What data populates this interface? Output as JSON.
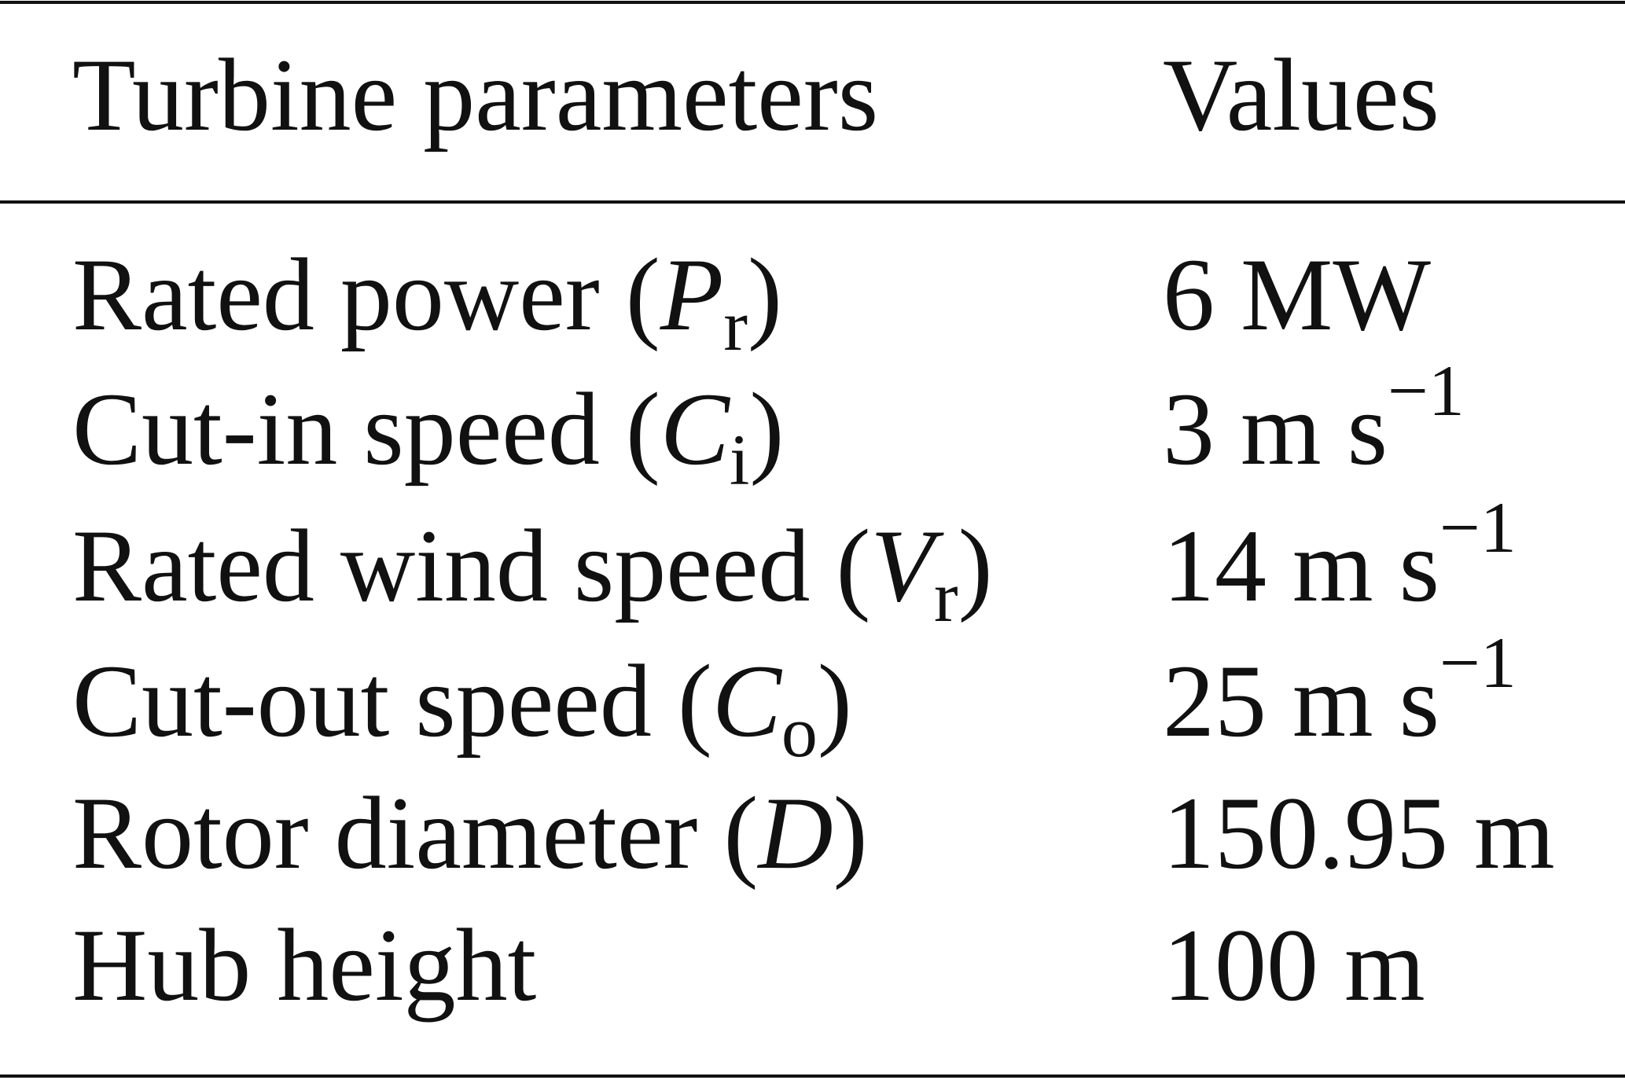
{
  "table": {
    "header": [
      "Turbine parameters",
      "Values"
    ],
    "rows": [
      [
        [
          {
            "text": "Rated power ("
          },
          {
            "text": "P",
            "style": "italic"
          },
          {
            "text": "r",
            "style": "sub"
          },
          {
            "text": ")"
          }
        ],
        [
          {
            "text": "6 MW"
          }
        ]
      ],
      [
        [
          {
            "text": "Cut-in speed ("
          },
          {
            "text": "C",
            "style": "italic"
          },
          {
            "text": "i",
            "style": "sub"
          },
          {
            "text": ")"
          }
        ],
        [
          {
            "text": "3 m s"
          },
          {
            "text": "−1",
            "style": "sup"
          }
        ]
      ],
      [
        [
          {
            "text": "Rated wind speed ("
          },
          {
            "text": "V",
            "style": "italic"
          },
          {
            "text": "r",
            "style": "sub"
          },
          {
            "text": ")"
          }
        ],
        [
          {
            "text": "14 m s"
          },
          {
            "text": "−1",
            "style": "sup"
          }
        ]
      ],
      [
        [
          {
            "text": "Cut-out speed ("
          },
          {
            "text": "C",
            "style": "italic"
          },
          {
            "text": "o",
            "style": "sub"
          },
          {
            "text": ")"
          }
        ],
        [
          {
            "text": "25 m s"
          },
          {
            "text": "−1",
            "style": "sup"
          }
        ]
      ],
      [
        [
          {
            "text": "Rotor diameter ("
          },
          {
            "text": "D",
            "style": "italic"
          },
          {
            "text": ")"
          }
        ],
        [
          {
            "text": "150.95 m"
          }
        ]
      ],
      [
        [
          {
            "text": "Hub height"
          }
        ],
        [
          {
            "text": "100 m"
          }
        ]
      ]
    ]
  }
}
